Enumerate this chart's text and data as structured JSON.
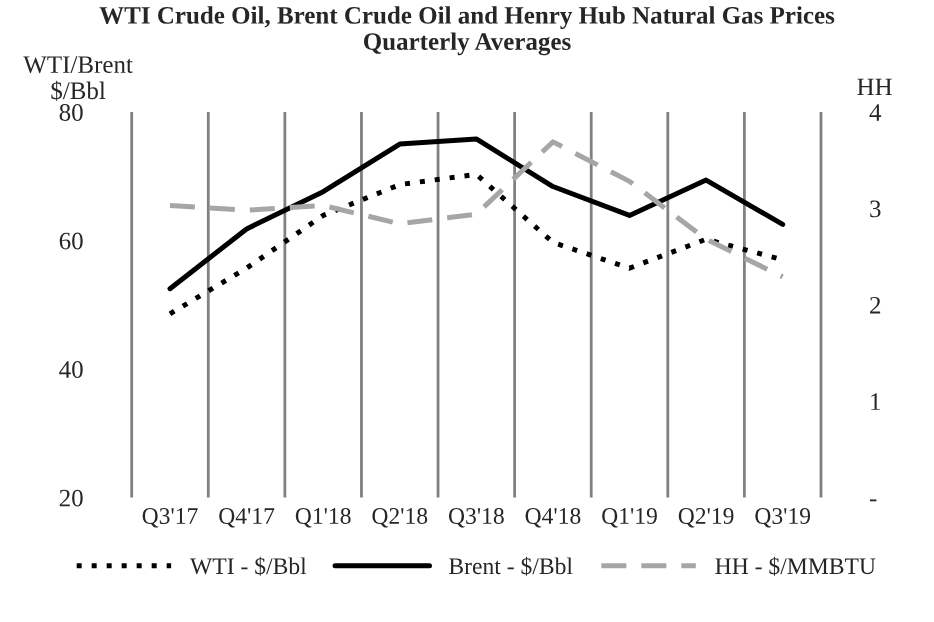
{
  "chart_data": {
    "type": "line",
    "title": "WTI Crude Oil, Brent Crude Oil and Henry Hub Natural Gas Prices\nQuarterly Averages",
    "ylabel": "WTI/Brent\n$/Bbl",
    "y2label": "HH",
    "categories": [
      "Q3'17",
      "Q4'17",
      "Q1'18",
      "Q2'18",
      "Q3'18",
      "Q4'18",
      "Q1'19",
      "Q2'19",
      "Q3'19"
    ],
    "series": [
      {
        "name": "WTI - $/Bbl",
        "color": "#000000",
        "line_style": "dotted",
        "values": [
          48.6,
          55.7,
          63.9,
          68.7,
          70.3,
          59.7,
          55.7,
          60.2,
          57.0
        ]
      },
      {
        "name": "Brent - $/Bbl",
        "color": "#000000",
        "line_style": "solid",
        "values": [
          52.5,
          61.8,
          67.6,
          75.0,
          75.8,
          68.4,
          63.9,
          69.4,
          62.5
        ]
      },
      {
        "name": "HH - $/MMBTU",
        "color": "#a6a6a6",
        "line_style": "dashed",
        "axis": "y2",
        "values": [
          3.03,
          2.98,
          3.03,
          2.84,
          2.94,
          3.69,
          3.28,
          2.68,
          2.29
        ]
      }
    ],
    "ylim": [
      20,
      80
    ],
    "yticks": [
      20,
      40,
      60,
      80
    ],
    "y2lim": [
      0,
      4
    ],
    "y2ticks": [
      {
        "value": 0,
        "label": "-"
      },
      1,
      2,
      3,
      4
    ],
    "grid": "x",
    "legend": "bottom",
    "marker": "none"
  }
}
